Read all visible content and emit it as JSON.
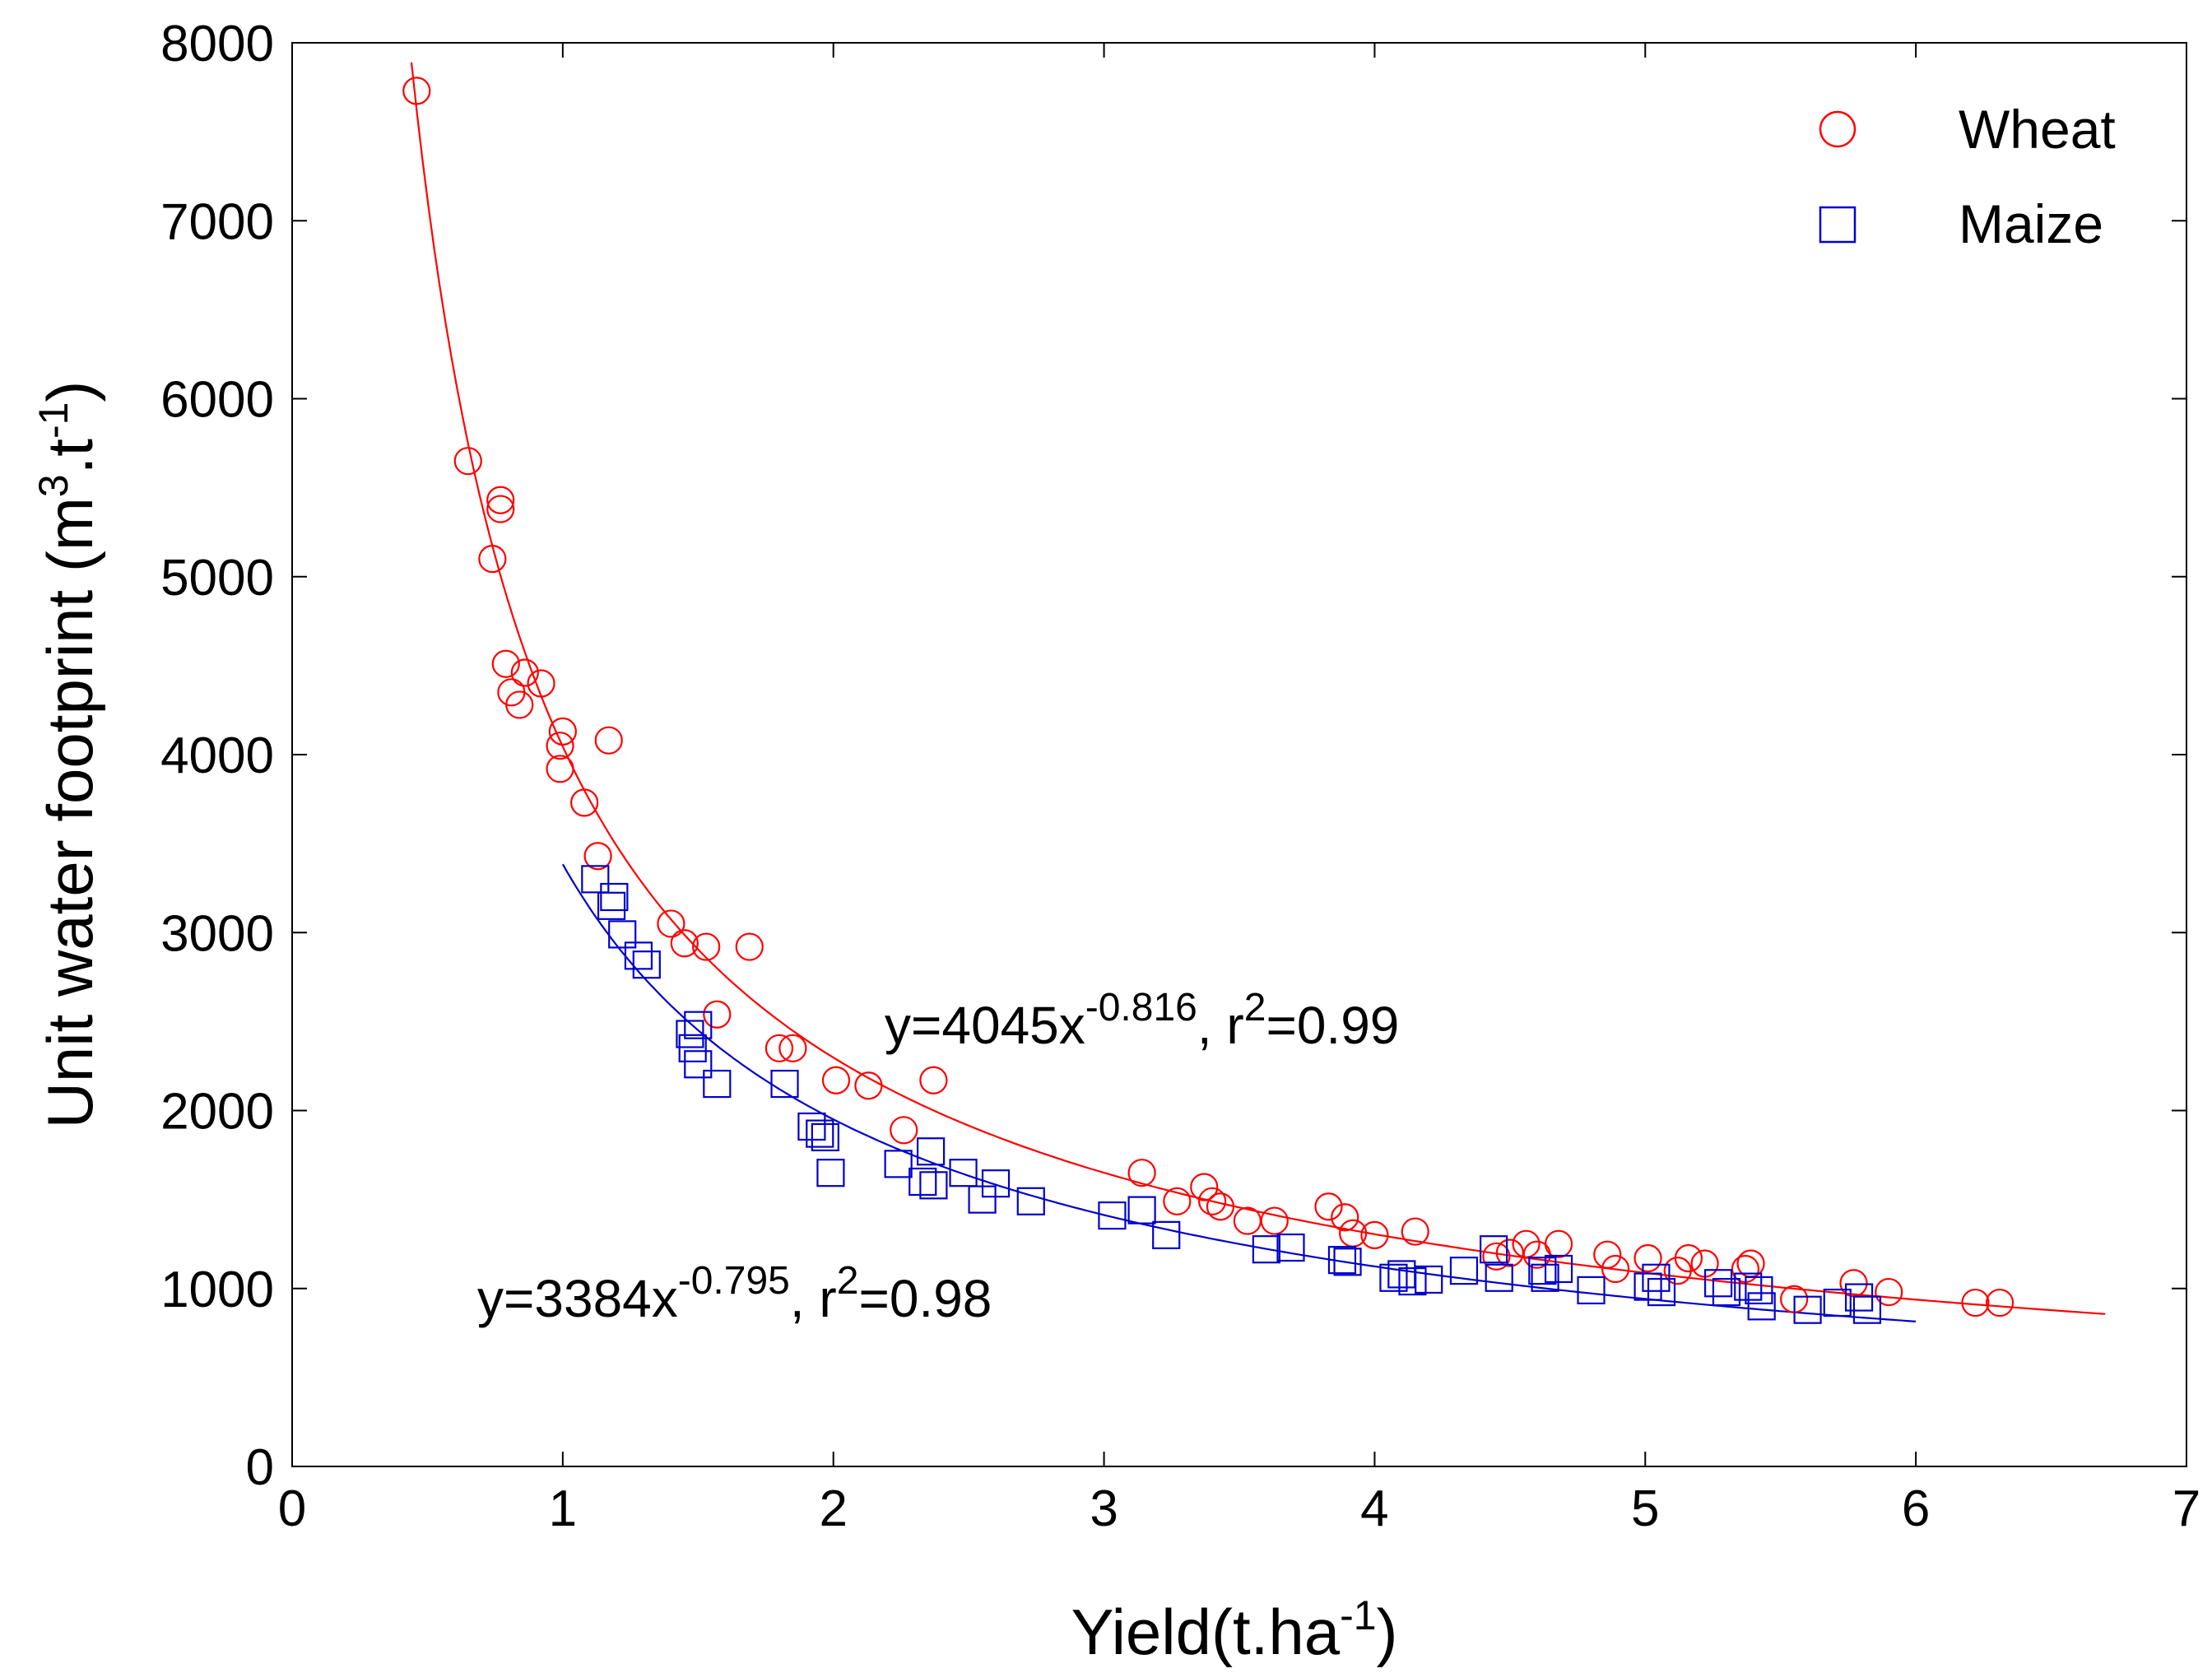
{
  "chart_data": {
    "type": "scatter",
    "title": "",
    "xlabel": "Yield(t.ha",
    "xlabel_sup": "-1",
    "xlabel_end": ")",
    "ylabel": "Unit water footprint (m",
    "ylabel_sup1": "3",
    "ylabel_mid": ".t",
    "ylabel_sup2": "-1",
    "ylabel_end": ")",
    "xlim": [
      0,
      7
    ],
    "ylim": [
      0,
      8000
    ],
    "xticks": [
      0,
      1,
      2,
      3,
      4,
      5,
      6,
      7
    ],
    "yticks": [
      0,
      1000,
      2000,
      3000,
      4000,
      5000,
      6000,
      7000,
      8000
    ],
    "grid": false,
    "legend_position": "top-right",
    "series": [
      {
        "name": "Wheat",
        "marker": "circle",
        "color": "#ff0000",
        "fit": {
          "a": 4045,
          "b": -0.816,
          "x_range": [
            0.42,
            6.7
          ]
        },
        "equation": {
          "prefix": "y=4045x",
          "exp": "-0.816",
          "mid": ", r",
          "r2_sup": "2",
          "suffix": "=0.99"
        },
        "points": [
          [
            0.46,
            7730
          ],
          [
            0.65,
            5650
          ],
          [
            0.74,
            5100
          ],
          [
            0.77,
            5430
          ],
          [
            0.77,
            5380
          ],
          [
            0.79,
            4510
          ],
          [
            0.81,
            4350
          ],
          [
            0.84,
            4280
          ],
          [
            0.86,
            4460
          ],
          [
            0.92,
            4400
          ],
          [
            0.99,
            4050
          ],
          [
            1.0,
            4130
          ],
          [
            0.99,
            3920
          ],
          [
            1.08,
            3730
          ],
          [
            1.13,
            3430
          ],
          [
            1.17,
            4080
          ],
          [
            1.4,
            3050
          ],
          [
            1.45,
            2940
          ],
          [
            1.53,
            2920
          ],
          [
            1.57,
            2540
          ],
          [
            1.69,
            2920
          ],
          [
            1.8,
            2350
          ],
          [
            1.85,
            2350
          ],
          [
            2.01,
            2170
          ],
          [
            2.13,
            2140
          ],
          [
            2.26,
            1890
          ],
          [
            2.37,
            2170
          ],
          [
            3.14,
            1650
          ],
          [
            3.27,
            1490
          ],
          [
            3.37,
            1570
          ],
          [
            3.4,
            1490
          ],
          [
            3.43,
            1460
          ],
          [
            3.53,
            1380
          ],
          [
            3.63,
            1380
          ],
          [
            3.83,
            1460
          ],
          [
            3.89,
            1400
          ],
          [
            3.92,
            1310
          ],
          [
            4.0,
            1300
          ],
          [
            4.15,
            1320
          ],
          [
            4.45,
            1180
          ],
          [
            4.5,
            1200
          ],
          [
            4.56,
            1250
          ],
          [
            4.6,
            1190
          ],
          [
            4.68,
            1250
          ],
          [
            4.86,
            1190
          ],
          [
            4.89,
            1110
          ],
          [
            5.01,
            1170
          ],
          [
            5.12,
            1100
          ],
          [
            5.16,
            1170
          ],
          [
            5.22,
            1140
          ],
          [
            5.37,
            1110
          ],
          [
            5.39,
            1140
          ],
          [
            5.55,
            940
          ],
          [
            5.77,
            1030
          ],
          [
            5.9,
            980
          ],
          [
            6.22,
            920
          ],
          [
            6.31,
            920
          ]
        ]
      },
      {
        "name": "Maize",
        "marker": "square",
        "color": "#0000cc",
        "fit": {
          "a": 3384,
          "b": -0.795,
          "x_range": [
            1.0,
            6.0
          ]
        },
        "equation": {
          "prefix": "y=3384x",
          "exp": "-0.795",
          "mid": ", r",
          "r2_sup": "2",
          "suffix": "=0.98"
        },
        "points": [
          [
            1.12,
            3300
          ],
          [
            1.18,
            3150
          ],
          [
            1.19,
            3200
          ],
          [
            1.22,
            2990
          ],
          [
            1.28,
            2870
          ],
          [
            1.31,
            2820
          ],
          [
            1.47,
            2430
          ],
          [
            1.48,
            2350
          ],
          [
            1.5,
            2480
          ],
          [
            1.5,
            2260
          ],
          [
            1.57,
            2150
          ],
          [
            1.82,
            2150
          ],
          [
            1.92,
            1910
          ],
          [
            1.95,
            1870
          ],
          [
            1.97,
            1850
          ],
          [
            1.99,
            1650
          ],
          [
            2.24,
            1700
          ],
          [
            2.33,
            1600
          ],
          [
            2.36,
            1770
          ],
          [
            2.37,
            1580
          ],
          [
            2.48,
            1650
          ],
          [
            2.55,
            1500
          ],
          [
            2.6,
            1590
          ],
          [
            2.73,
            1490
          ],
          [
            3.03,
            1410
          ],
          [
            3.14,
            1440
          ],
          [
            3.23,
            1300
          ],
          [
            3.6,
            1220
          ],
          [
            3.69,
            1230
          ],
          [
            3.88,
            1160
          ],
          [
            3.9,
            1150
          ],
          [
            4.07,
            1060
          ],
          [
            4.1,
            1080
          ],
          [
            4.14,
            1040
          ],
          [
            4.2,
            1050
          ],
          [
            4.33,
            1100
          ],
          [
            4.44,
            1220
          ],
          [
            4.46,
            1060
          ],
          [
            4.62,
            1100
          ],
          [
            4.63,
            1060
          ],
          [
            4.68,
            1110
          ],
          [
            4.8,
            990
          ],
          [
            5.01,
            1010
          ],
          [
            5.04,
            1060
          ],
          [
            5.06,
            980
          ],
          [
            5.27,
            1030
          ],
          [
            5.3,
            980
          ],
          [
            5.38,
            1010
          ],
          [
            5.42,
            990
          ],
          [
            5.43,
            900
          ],
          [
            5.6,
            880
          ],
          [
            5.71,
            920
          ],
          [
            5.79,
            950
          ],
          [
            5.82,
            880
          ]
        ]
      }
    ]
  }
}
